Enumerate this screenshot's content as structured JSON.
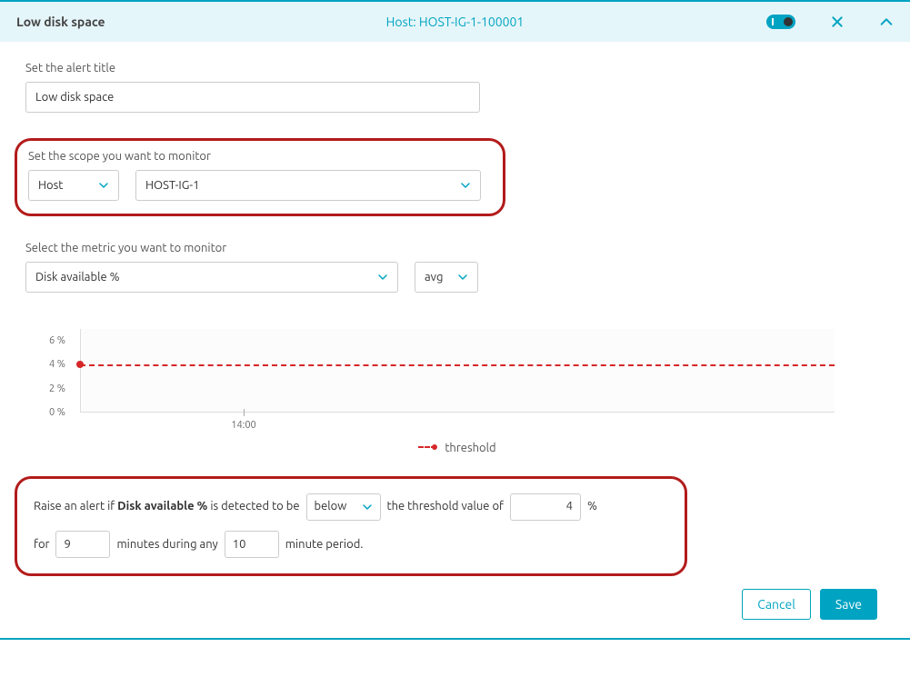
{
  "header": {
    "title": "Low disk space",
    "host_label": "Host: HOST-IG-1-100001"
  },
  "alert_title": {
    "label": "Set the alert title",
    "value": "Low disk space"
  },
  "scope": {
    "label": "Set the scope you want to monitor",
    "type": "Host",
    "value": "HOST-IG-1",
    "highlight_color": "#b31b1b"
  },
  "metric": {
    "label": "Select the metric you want to monitor",
    "name": "Disk available %",
    "aggregation": "avg"
  },
  "chart": {
    "type": "line",
    "y_ticks": [
      0,
      2,
      4,
      6
    ],
    "y_tick_suffix": " %",
    "ylim": [
      0,
      7
    ],
    "x_ticks": [
      "14:00"
    ],
    "threshold_value": 4,
    "threshold_color": "#d62728",
    "background_color": "#fcfcfc",
    "axis_color": "#ddd",
    "tick_fontsize": 11,
    "legend_label": "threshold"
  },
  "condition": {
    "prefix": "Raise an alert if ",
    "metric_bold": "Disk available %",
    "mid1": " is detected to be ",
    "comparator": "below",
    "mid2": " the threshold value of ",
    "threshold": "4",
    "unit": "%",
    "line2_prefix": "for ",
    "duration": "9",
    "line2_mid": " minutes during any ",
    "period": "10",
    "line2_suffix": " minute period.",
    "highlight_color": "#b31b1b"
  },
  "footer": {
    "cancel": "Cancel",
    "save": "Save"
  },
  "colors": {
    "accent": "#00a3c2",
    "header_bg": "#e5f6fa"
  }
}
